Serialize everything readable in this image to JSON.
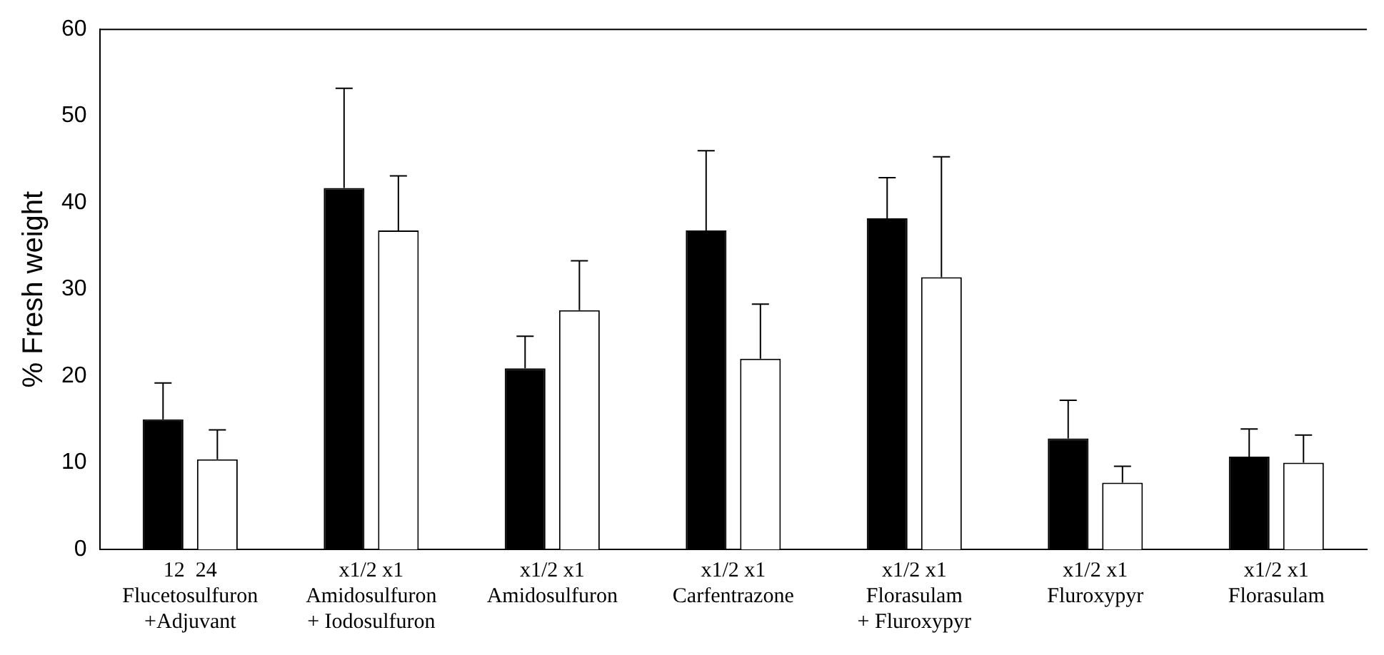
{
  "chart_data": {
    "type": "bar",
    "ylabel": "% Fresh weight",
    "categories": [
      "12  24\nFlucetosulfuron\n+Adjuvant",
      "x1/2 x1\nAmidosulfuron\n+ Iodosulfuron",
      "x1/2 x1\nAmidosulfuron",
      "x1/2 x1\nCarfentrazone",
      "x1/2 x1\nFlorasulam\n+ Fluroxypyr",
      "x1/2 x1\nFluroxypyr",
      "x1/2 x1\nFlorasulam"
    ],
    "series": [
      {
        "color": "#000000",
        "values": [
          15.0,
          41.7,
          20.9,
          36.8,
          38.2,
          12.8,
          10.7
        ],
        "errors": [
          [
            15.0,
            19.2
          ],
          [
            41.7,
            53.2
          ],
          [
            20.9,
            24.6
          ],
          [
            36.8,
            46.0
          ],
          [
            38.2,
            42.9
          ],
          [
            12.8,
            17.2
          ],
          [
            10.7,
            13.9
          ]
        ]
      },
      {
        "color": "#ffffff",
        "values": [
          10.4,
          36.8,
          27.6,
          22.0,
          31.4,
          7.7,
          10.0
        ],
        "errors": [
          [
            10.4,
            13.8
          ],
          [
            36.8,
            43.1
          ],
          [
            27.6,
            33.3
          ],
          [
            22.0,
            28.3
          ],
          [
            31.4,
            45.3
          ],
          [
            7.7,
            9.6
          ],
          [
            10.0,
            13.2
          ]
        ]
      }
    ],
    "ylim": [
      0,
      60
    ],
    "yticks": [
      0,
      10,
      20,
      30,
      40,
      50,
      60
    ],
    "grid": false,
    "legend": false
  }
}
